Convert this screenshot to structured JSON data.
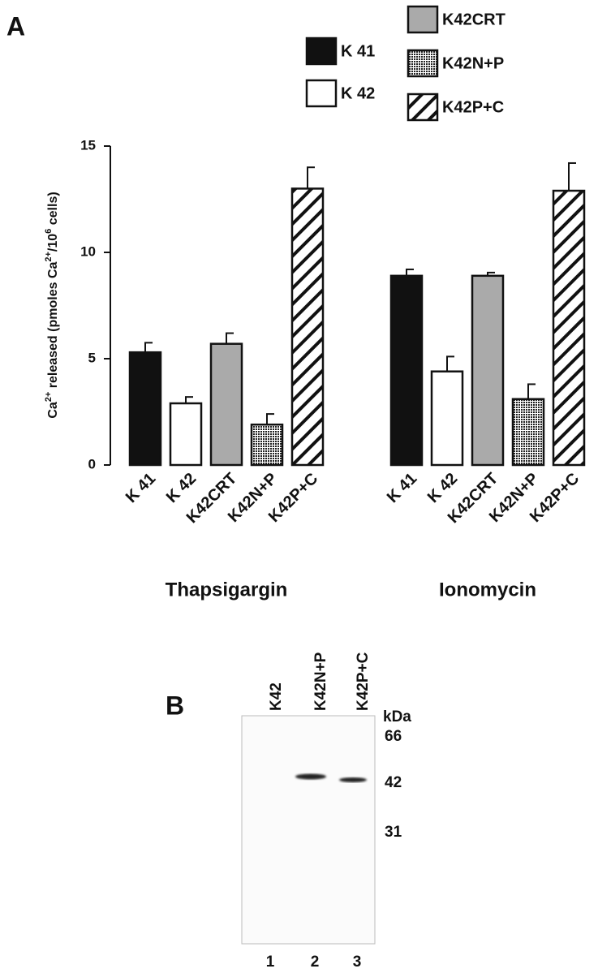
{
  "panel_labels": [
    "A",
    "B"
  ],
  "chart_data": {
    "type": "bar",
    "ylabel_parts": [
      "Ca",
      "2+",
      " released (pmoles Ca",
      "2+",
      "/10",
      "6",
      " cells)"
    ],
    "categories": [
      "Thapsigargin",
      "Ionomycin"
    ],
    "series": [
      {
        "name": "K 41",
        "color": "#111111",
        "pattern": "solid",
        "values": [
          5.3,
          8.9
        ],
        "errors": [
          0.45,
          0.3
        ]
      },
      {
        "name": "K 42",
        "color": "#ffffff",
        "pattern": "solid",
        "values": [
          2.9,
          4.4
        ],
        "errors": [
          0.3,
          0.7
        ]
      },
      {
        "name": "K42CRT",
        "color": "#aaaaaa",
        "pattern": "solid",
        "values": [
          5.7,
          8.9
        ],
        "errors": [
          0.5,
          0.15
        ]
      },
      {
        "name": "K42N+P",
        "color": "#333333",
        "pattern": "dots",
        "values": [
          1.9,
          3.1
        ],
        "errors": [
          0.5,
          0.7
        ]
      },
      {
        "name": "K42P+C",
        "color": "#111111",
        "pattern": "hatch",
        "values": [
          13.0,
          12.9
        ],
        "errors": [
          1.0,
          1.3
        ]
      }
    ],
    "ylim": [
      0,
      15
    ],
    "yticks": [
      0,
      5,
      10,
      15
    ]
  },
  "blot": {
    "lanes": [
      "K42",
      "K42N+P",
      "K42P+C"
    ],
    "unit": "kDa",
    "markers": [
      66,
      42,
      31
    ],
    "lane_numbers": [
      1,
      2,
      3
    ]
  }
}
